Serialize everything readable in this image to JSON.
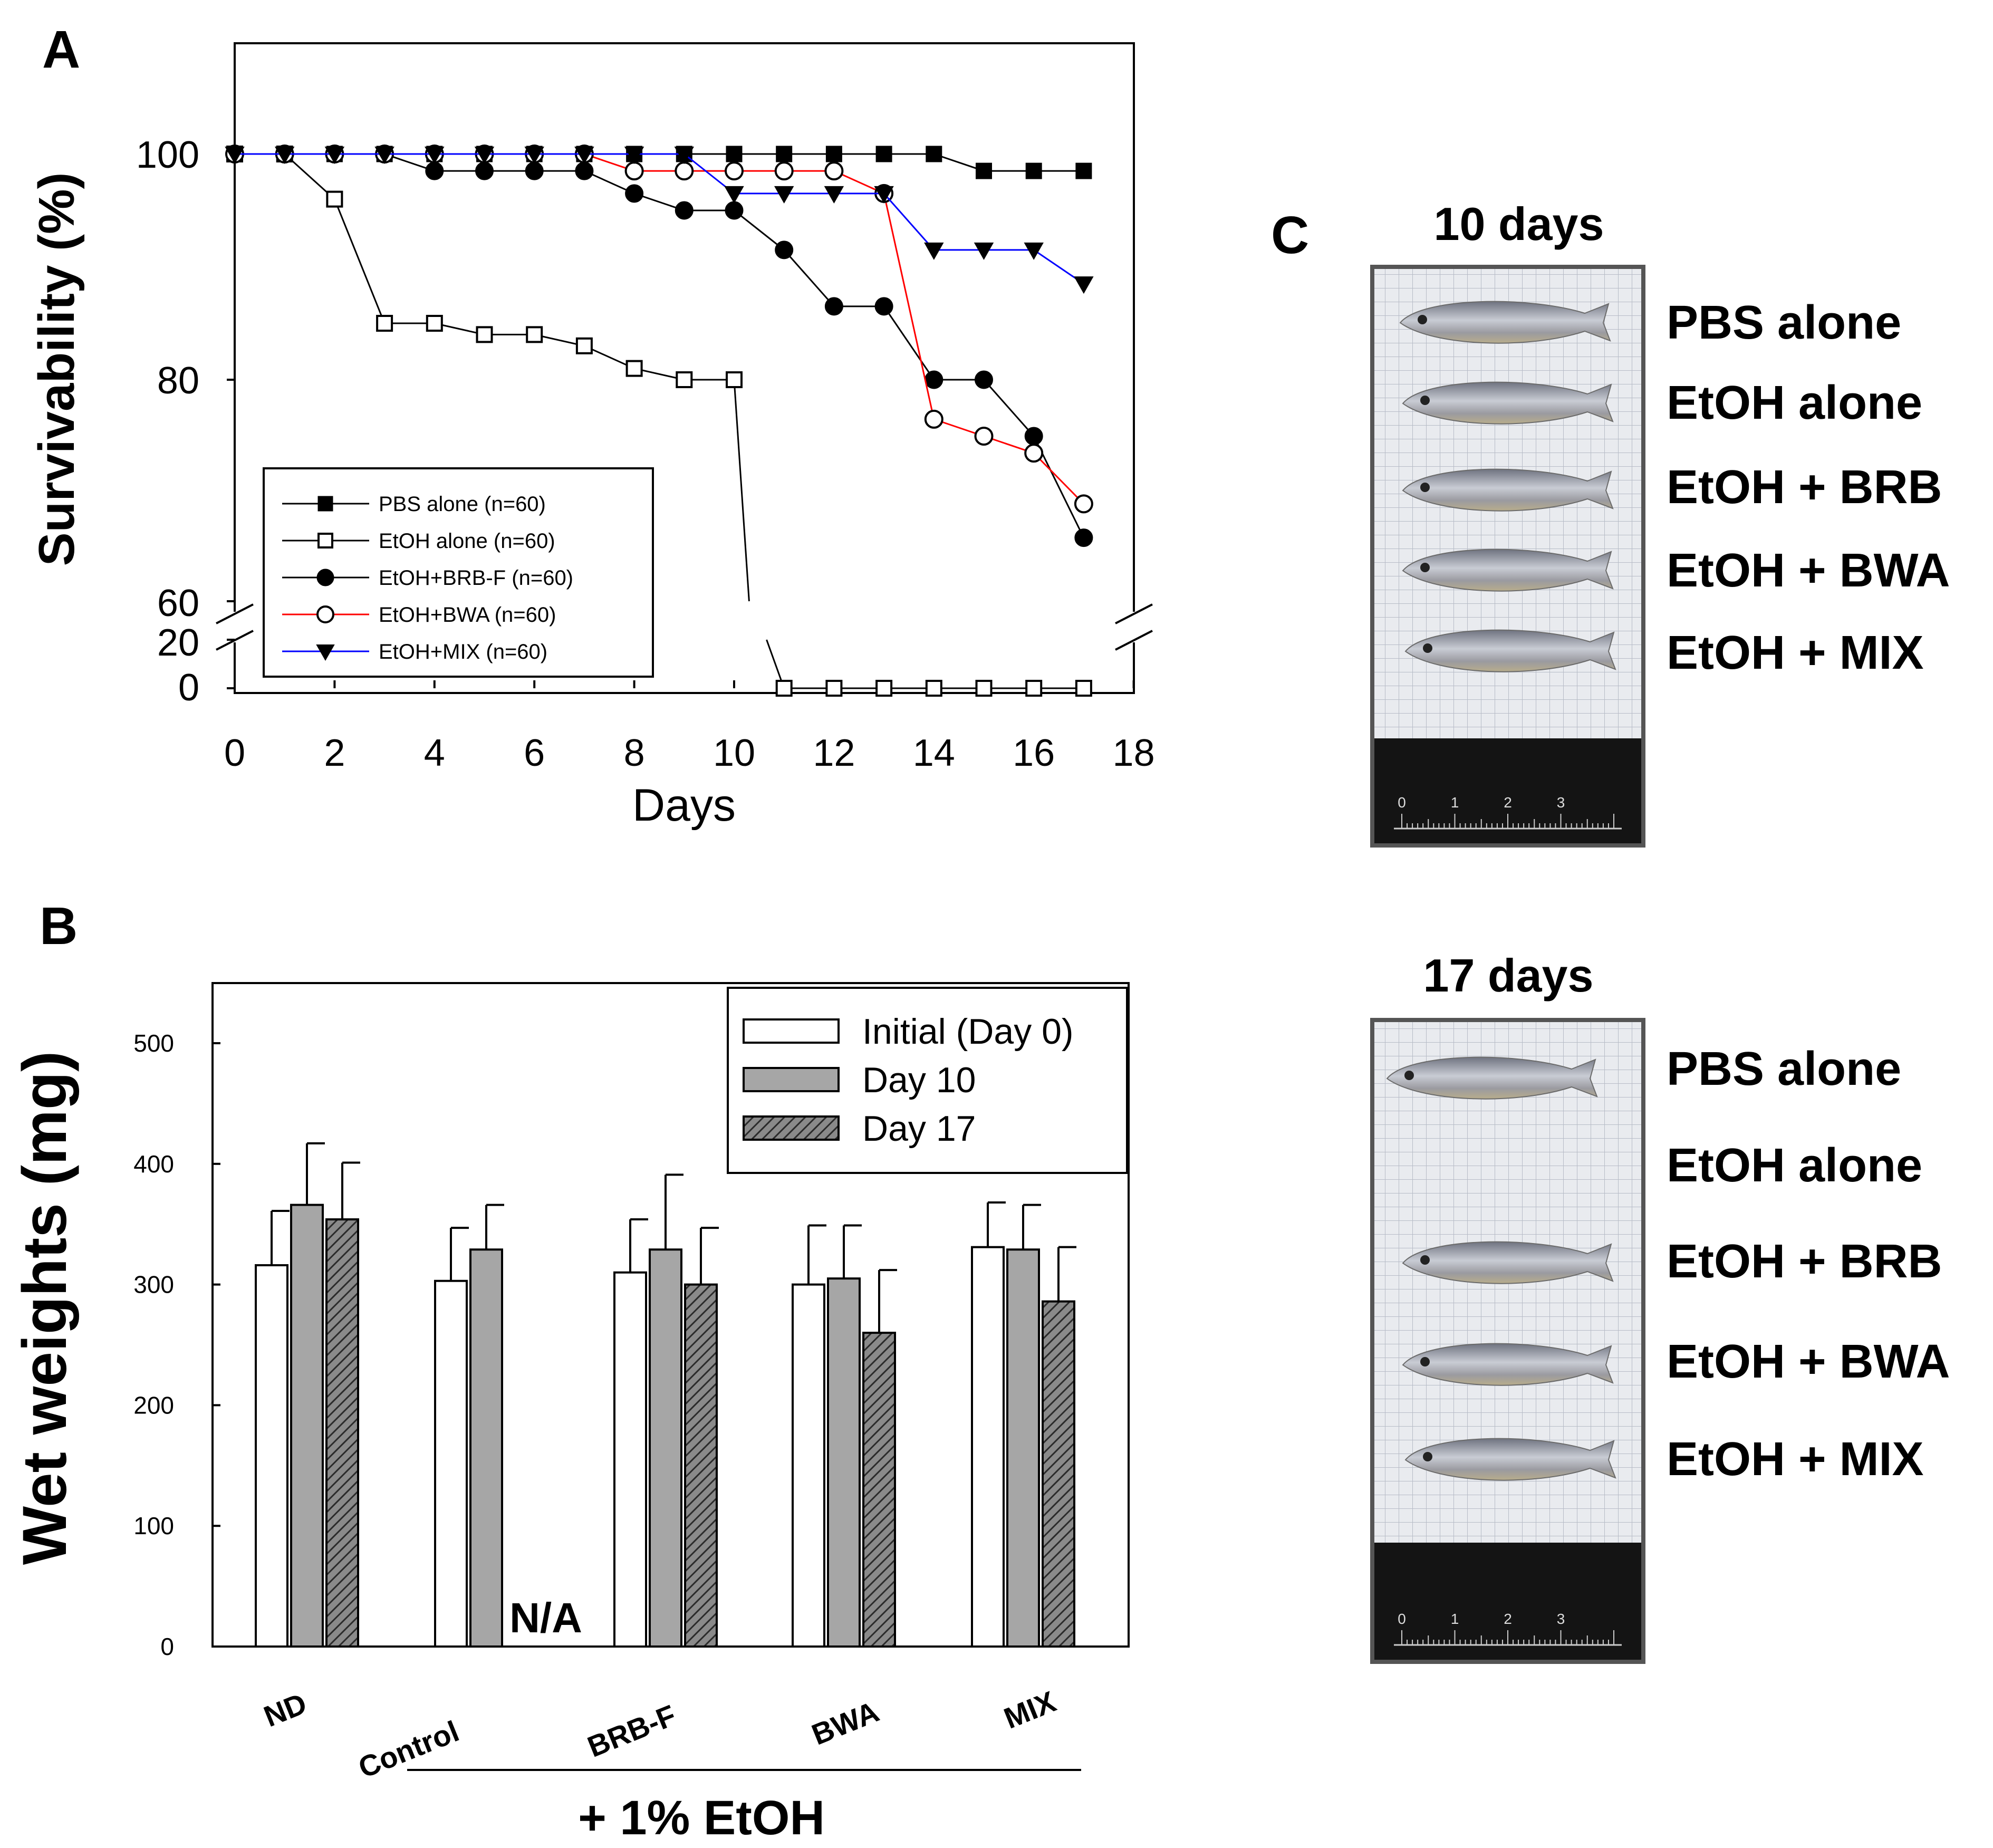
{
  "panels": {
    "a_letter": "A",
    "b_letter": "B",
    "c_letter": "C"
  },
  "chart_data": [
    {
      "type": "line",
      "panel": "A",
      "xlabel": "Days",
      "ylabel": "Survivability (%)",
      "xlim": [
        0,
        18
      ],
      "x_ticks": [
        "0",
        "2",
        "4",
        "6",
        "8",
        "10",
        "12",
        "14",
        "16",
        "18"
      ],
      "y_ticks": [
        "100",
        "80",
        "60",
        "20",
        "0"
      ],
      "broken_axis": {
        "lower_range": [
          0,
          20
        ],
        "upper_range": [
          60,
          110
        ]
      },
      "legend_position": "lower-left",
      "series": [
        {
          "name": "PBS alone (n=60)",
          "marker": "filled-square",
          "color": "#000000",
          "x": [
            0,
            1,
            2,
            3,
            4,
            5,
            6,
            7,
            8,
            9,
            10,
            11,
            12,
            13,
            14,
            15,
            16,
            17
          ],
          "y": [
            100,
            100,
            100,
            100,
            100,
            100,
            100,
            100,
            100,
            100,
            100,
            100,
            100,
            100,
            100,
            98.5,
            98.5,
            98.5
          ]
        },
        {
          "name": "EtOH alone (n=60)",
          "marker": "open-square",
          "color": "#000000",
          "x": [
            0,
            1,
            2,
            3,
            4,
            5,
            6,
            7,
            8,
            9,
            10,
            11,
            12,
            13,
            14,
            15,
            16,
            17
          ],
          "y": [
            100,
            100,
            96,
            85,
            85,
            84,
            84,
            83,
            81,
            80,
            80,
            0,
            0,
            0,
            0,
            0,
            0,
            0
          ]
        },
        {
          "name": "EtOH+BRB-F (n=60)",
          "marker": "filled-circle",
          "color": "#000000",
          "x": [
            0,
            1,
            2,
            3,
            4,
            5,
            6,
            7,
            8,
            9,
            10,
            11,
            12,
            13,
            14,
            15,
            16,
            17
          ],
          "y": [
            100,
            100,
            100,
            100,
            98.5,
            98.5,
            98.5,
            98.5,
            96.5,
            95,
            95,
            91.5,
            86.5,
            86.5,
            80,
            80,
            75,
            66
          ]
        },
        {
          "name": "EtOH+BWA (n=60)",
          "marker": "open-circle",
          "color": "#ff0000",
          "x": [
            0,
            1,
            2,
            3,
            4,
            5,
            6,
            7,
            8,
            9,
            10,
            11,
            12,
            13,
            14,
            15,
            16,
            17
          ],
          "y": [
            100,
            100,
            100,
            100,
            100,
            100,
            100,
            100,
            98.5,
            98.5,
            98.5,
            98.5,
            98.5,
            96.5,
            76.5,
            75,
            73.5,
            69
          ]
        },
        {
          "name": "EtOH+MIX (n=60)",
          "marker": "filled-triangle-down",
          "color": "#0000ff",
          "x": [
            0,
            1,
            2,
            3,
            4,
            5,
            6,
            7,
            8,
            9,
            10,
            11,
            12,
            13,
            14,
            15,
            16,
            17
          ],
          "y": [
            100,
            100,
            100,
            100,
            100,
            100,
            100,
            100,
            100,
            100,
            96.5,
            96.5,
            96.5,
            96.5,
            91.5,
            91.5,
            91.5,
            88.5
          ]
        }
      ]
    },
    {
      "type": "bar",
      "panel": "B",
      "ylabel": "Wet weights (mg)",
      "ylim": [
        0,
        550
      ],
      "y_ticks": [
        "0",
        "100",
        "200",
        "300",
        "400",
        "500"
      ],
      "categories": [
        "ND",
        "Control",
        "BRB-F",
        "BWA",
        "MIX"
      ],
      "group_label": "+ 1% EtOH",
      "na_label": "N/A",
      "legend_position": "top-right",
      "series": [
        {
          "name": "Initial (Day 0)",
          "fill": "white",
          "values": [
            316,
            303,
            310,
            300,
            331
          ],
          "errors": [
            45,
            44,
            44,
            49,
            37
          ]
        },
        {
          "name": "Day 10",
          "fill": "gray",
          "values": [
            366,
            329,
            329,
            305,
            329
          ],
          "errors": [
            51,
            37,
            62,
            44,
            37
          ]
        },
        {
          "name": "Day 17",
          "fill": "hatched",
          "values": [
            354,
            null,
            300,
            260,
            286
          ],
          "errors": [
            47,
            null,
            47,
            52,
            45
          ]
        }
      ]
    }
  ],
  "photos": [
    {
      "title": "10 days",
      "labels": [
        "PBS alone",
        "EtOH alone",
        "EtOH + BRB",
        "EtOH + BWA",
        "EtOH + MIX"
      ],
      "ruler_numbers": [
        "0",
        "1",
        "2",
        "3"
      ]
    },
    {
      "title": "17 days",
      "labels": [
        "PBS alone",
        "EtOH alone",
        "EtOH + BRB",
        "EtOH + BWA",
        "EtOH + MIX"
      ],
      "ruler_numbers": [
        "0",
        "1",
        "2",
        "3"
      ]
    }
  ],
  "colors": {
    "black": "#000000",
    "red": "#ff0000",
    "blue": "#0000ff",
    "gray_bar": "#a6a6a6",
    "photo_bg": "#ecedf0"
  }
}
